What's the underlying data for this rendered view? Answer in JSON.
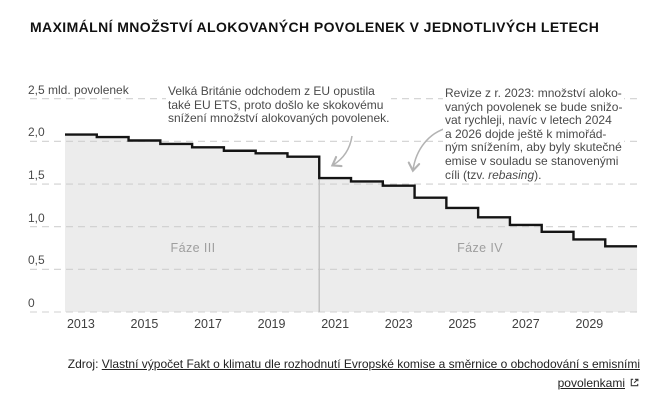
{
  "title": "MAXIMÁLNÍ MNOŽSTVÍ ALOKOVANÝCH POVOLENEK V JEDNOTLIVÝCH LETECH",
  "chart_data": {
    "type": "area",
    "step": true,
    "title": "MAXIMÁLNÍ MNOŽSTVÍ ALOKOVANÝCH POVOLENEK V JEDNOTLIVÝCH LETECH",
    "x": [
      2013,
      2014,
      2015,
      2016,
      2017,
      2018,
      2019,
      2020,
      2021,
      2022,
      2023,
      2024,
      2025,
      2026,
      2027,
      2028,
      2029,
      2030
    ],
    "values": [
      2.08,
      2.05,
      2.01,
      1.97,
      1.93,
      1.89,
      1.86,
      1.82,
      1.57,
      1.53,
      1.48,
      1.34,
      1.22,
      1.11,
      1.02,
      0.94,
      0.85,
      0.77
    ],
    "ylabel": "mld. povolenek",
    "ylim": [
      0,
      2.5
    ],
    "grid": "dashed-horizontal",
    "y_ticks": [
      {
        "v": 0.0,
        "label": "0"
      },
      {
        "v": 0.5,
        "label": "0,5"
      },
      {
        "v": 1.0,
        "label": "1,0"
      },
      {
        "v": 1.5,
        "label": "1,5"
      },
      {
        "v": 2.0,
        "label": "2,0"
      },
      {
        "v": 2.5,
        "label": "2,5 mld. povolenek"
      }
    ],
    "x_tick_labels": [
      "2013",
      "2015",
      "2017",
      "2019",
      "2021",
      "2023",
      "2025",
      "2027",
      "2029"
    ],
    "phases": [
      {
        "label": "Fáze III",
        "start": 2013,
        "end": 2021
      },
      {
        "label": "Fáze IV",
        "start": 2021,
        "end": 2031
      }
    ],
    "colors": {
      "area_fill": "#ececec",
      "step_line": "#141414",
      "gridline": "#cccccc",
      "phase_divider": "#c2c2c2",
      "arrow": "#b3b3b3"
    }
  },
  "annotations": {
    "brexit": {
      "lines": "Velká Británie odchodem z EU opustila\ntaké EU ETS, proto došlo ke skokovému\nsnížení množství alokovaných povolenek."
    },
    "revision": {
      "lines": "Revize z r. 2023: množství aloko-\nvaných povolenek se bude snižo-\nvat rychleji, navíc v letech 2024\na 2026 dojde ještě k mimořád-\nným snížením, aby byly skutečné\nemise v souladu se stanovenými\ncíli (tzv. ",
      "italic": "rebasing",
      "tail": ")."
    }
  },
  "footer": {
    "prefix": "Zdroj: ",
    "link_lines": [
      "Vlastní výpočet Fakt o klimatu dle rozhodnutí Evropské komise a směrnice o obchodování s emisními",
      "povolenkami"
    ],
    "external_icon": "external-link-icon"
  }
}
